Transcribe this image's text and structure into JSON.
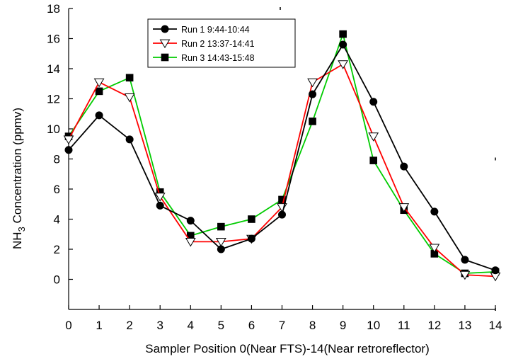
{
  "chart_data": {
    "type": "line",
    "x": [
      0,
      1,
      2,
      3,
      4,
      5,
      6,
      7,
      8,
      9,
      10,
      11,
      12,
      13,
      14
    ],
    "xlim": [
      0,
      14
    ],
    "ylim": [
      -2,
      18
    ],
    "xticks": [
      0,
      1,
      2,
      3,
      4,
      5,
      6,
      7,
      8,
      9,
      10,
      11,
      12,
      13,
      14
    ],
    "yticks": [
      0,
      2,
      4,
      6,
      8,
      10,
      12,
      14,
      16,
      18
    ],
    "xlabel": "Sampler Position 0(Near FTS)-14(Near retroreflector)",
    "ylabel_main": "NH",
    "ylabel_sub": "3",
    "ylabel_rest": " Concentration (ppmv)",
    "legend_position": "top-left",
    "grid": false,
    "series": [
      {
        "name": "Run 1 9:44-10:44",
        "color": "#000000",
        "marker": "circle",
        "values": [
          8.6,
          10.9,
          9.3,
          4.9,
          3.9,
          2.0,
          2.7,
          4.3,
          12.3,
          15.6,
          11.8,
          7.5,
          4.5,
          1.3,
          0.6
        ]
      },
      {
        "name": "Run 2 13:37-14:41",
        "color": "#ff0000",
        "marker": "triangle-down",
        "values": [
          9.3,
          13.1,
          12.1,
          5.5,
          2.5,
          2.5,
          2.7,
          4.8,
          13.1,
          14.3,
          9.5,
          4.8,
          2.1,
          0.3,
          0.2
        ]
      },
      {
        "name": "Run 3 14:43-15:48",
        "color": "#00cc00",
        "marker": "square",
        "values": [
          9.5,
          12.5,
          13.4,
          5.8,
          2.9,
          3.5,
          4.0,
          5.3,
          10.5,
          16.3,
          7.9,
          4.6,
          1.7,
          0.4,
          0.5
        ]
      }
    ]
  }
}
